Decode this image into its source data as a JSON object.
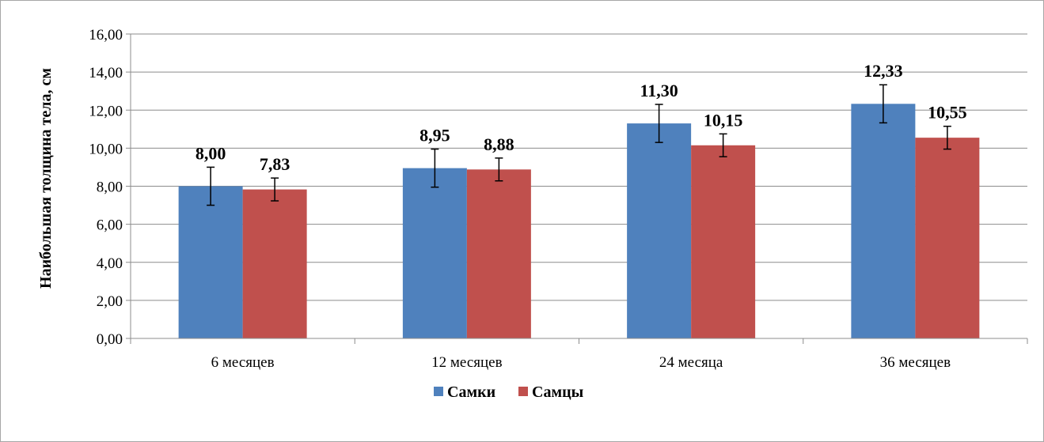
{
  "chart_data": {
    "type": "bar",
    "title": "",
    "xlabel": "",
    "ylabel": "Наибольшая толщина тела, см",
    "ylim": [
      0,
      16
    ],
    "ytick_step": 2,
    "ytick_labels": [
      "0,00",
      "2,00",
      "4,00",
      "6,00",
      "8,00",
      "10,00",
      "12,00",
      "14,00",
      "16,00"
    ],
    "grid": true,
    "legend_position": "bottom",
    "categories": [
      "6 месяцев",
      "12 месяцев",
      "24 месяца",
      "36 месяцев"
    ],
    "series": [
      {
        "name": "Самки",
        "color": "#4f81bd",
        "values": [
          8.0,
          8.95,
          11.3,
          12.33
        ],
        "value_labels": [
          "8,00",
          "8,95",
          "11,30",
          "12,33"
        ],
        "error": [
          1.0,
          1.0,
          1.0,
          1.0
        ]
      },
      {
        "name": "Самцы",
        "color": "#c0504d",
        "values": [
          7.83,
          8.88,
          10.15,
          10.55
        ],
        "value_labels": [
          "7,83",
          "8,88",
          "10,15",
          "10,55"
        ],
        "error": [
          0.6,
          0.6,
          0.6,
          0.6
        ]
      }
    ]
  }
}
